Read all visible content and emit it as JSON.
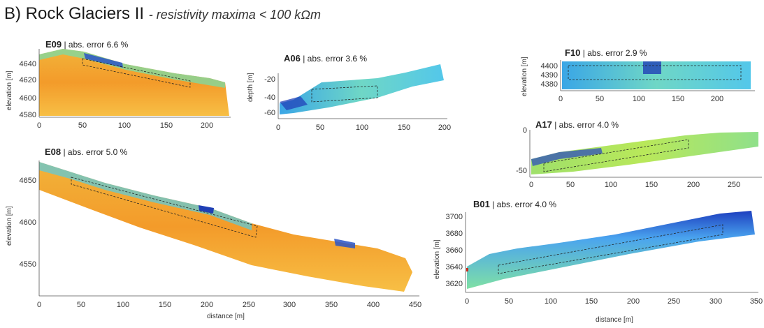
{
  "figure": {
    "title": "B) Rock Glaciers II",
    "subtitle": "- resistivity maxima < 100 kΩm",
    "colors": {
      "high": "#f0a431",
      "mid": "#6fd7c6",
      "low": "#1d3fbf",
      "outline": "#222222"
    }
  },
  "panels": [
    {
      "id": "E09",
      "error_label": "| abs. error 6.6 %",
      "xlabel": "",
      "ylabel": "elevation [m]",
      "xticks": [
        "0",
        "50",
        "100",
        "150",
        "200"
      ],
      "yticks": [
        "4640",
        "4620",
        "4600",
        "4580"
      ],
      "fill": "orange"
    },
    {
      "id": "A06",
      "error_label": "| abs. error 3.6 %",
      "xlabel": "",
      "ylabel": "depth [m]",
      "xticks": [
        "0",
        "50",
        "100",
        "150",
        "200"
      ],
      "yticks": [
        "-20",
        "-40",
        "-60"
      ],
      "fill": "blue"
    },
    {
      "id": "F10",
      "error_label": "| abs. error 2.9 %",
      "xlabel": "",
      "ylabel": "elevation [m]",
      "xticks": [
        "0",
        "50",
        "100",
        "150",
        "200"
      ],
      "yticks": [
        "4400",
        "4390",
        "4380"
      ],
      "fill": "blue"
    },
    {
      "id": "A17",
      "error_label": "| abs. error 4.0 %",
      "xlabel": "",
      "ylabel": "",
      "xticks": [
        "0",
        "50",
        "100",
        "150",
        "200",
        "250"
      ],
      "yticks": [
        "0",
        "-50"
      ],
      "fill": "green"
    },
    {
      "id": "E08",
      "error_label": "| abs. error 5.0 %",
      "xlabel": "distance [m]",
      "ylabel": "elevation [m]",
      "xticks": [
        "0",
        "50",
        "100",
        "150",
        "200",
        "250",
        "300",
        "350",
        "400",
        "450"
      ],
      "yticks": [
        "4650",
        "4600",
        "4550"
      ],
      "fill": "orange"
    },
    {
      "id": "B01",
      "error_label": "| abs. error 4.0 %",
      "xlabel": "distance [m]",
      "ylabel": "elevation [m]",
      "xticks": [
        "0",
        "50",
        "100",
        "150",
        "200",
        "250",
        "300",
        "350"
      ],
      "yticks": [
        "3700",
        "3680",
        "3660",
        "3640",
        "3620"
      ],
      "fill": "blue"
    }
  ]
}
